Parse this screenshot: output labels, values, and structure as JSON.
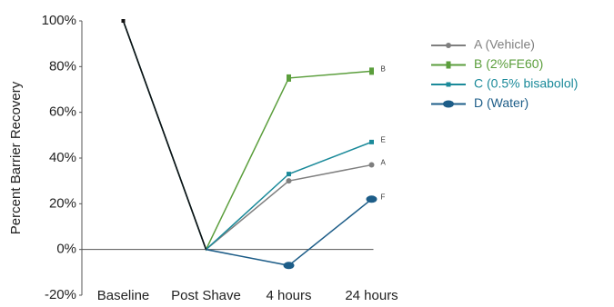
{
  "chart_data": {
    "type": "line",
    "ylabel": "Percent Barrier Recovery",
    "categories": [
      "Baseline",
      "Post Shave",
      "4 hours",
      "24 hours"
    ],
    "ylim": [
      -20,
      100
    ],
    "yticks": [
      {
        "value": -20,
        "label": "-20%"
      },
      {
        "value": 0,
        "label": "0%"
      },
      {
        "value": 20,
        "label": "20%"
      },
      {
        "value": 40,
        "label": "40%"
      },
      {
        "value": 60,
        "label": "60%"
      },
      {
        "value": 80,
        "label": "80%"
      },
      {
        "value": 100,
        "label": "100%"
      }
    ],
    "grid": false,
    "series": [
      {
        "name": "A (Vehicle)",
        "color": "#7f7f7f",
        "marker": "circle",
        "annotation": "A",
        "values": [
          100,
          0,
          30,
          37
        ]
      },
      {
        "name": "B (2%FE60)",
        "color": "#5b9e3c",
        "marker": "bar",
        "annotation": "B",
        "values": [
          100,
          0,
          75,
          78
        ]
      },
      {
        "name": "C (0.5% bisabolol)",
        "color": "#1b8a9a",
        "marker": "square",
        "annotation": "E",
        "values": [
          100,
          0,
          33,
          47
        ]
      },
      {
        "name": "D (Water)",
        "color": "#1d5d88",
        "marker": "ellipse",
        "annotation": "F",
        "values": [
          100,
          0,
          -7,
          22
        ]
      }
    ]
  }
}
